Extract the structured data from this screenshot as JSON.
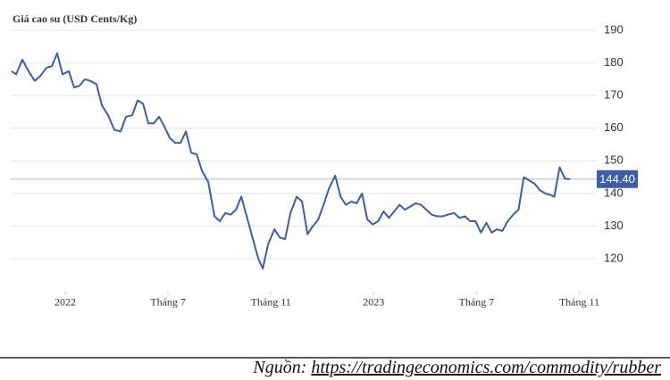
{
  "chart_data": {
    "type": "line",
    "title": "Giá cao su (USD Cents/Kg)",
    "x": [
      -0.522,
      -0.478,
      -0.417,
      -0.357,
      -0.296,
      -0.243,
      -0.183,
      -0.13,
      -0.078,
      -0.026,
      0.035,
      0.087,
      0.139,
      0.191,
      0.243,
      0.304,
      0.357,
      0.417,
      0.478,
      0.539,
      0.591,
      0.652,
      0.704,
      0.757,
      0.809,
      0.861,
      0.913,
      0.965,
      1.017,
      1.07,
      1.122,
      1.174,
      1.226,
      1.278,
      1.33,
      1.391,
      1.452,
      1.504,
      1.557,
      1.609,
      1.661,
      1.713,
      1.765,
      1.817,
      1.878,
      1.922,
      1.974,
      2.035,
      2.087,
      2.139,
      2.191,
      2.252,
      2.304,
      2.357,
      2.409,
      2.461,
      2.513,
      2.565,
      2.626,
      2.678,
      2.73,
      2.783,
      2.835,
      2.887,
      2.939,
      2.991,
      3.043,
      3.096,
      3.148,
      3.2,
      3.252,
      3.304,
      3.357,
      3.409,
      3.461,
      3.513,
      3.565,
      3.617,
      3.67,
      3.722,
      3.783,
      3.835,
      3.887,
      3.939,
      3.991,
      4.043,
      4.096,
      4.148,
      4.2,
      4.252,
      4.304,
      4.357,
      4.409,
      4.461,
      4.513,
      4.565,
      4.617,
      4.67,
      4.722,
      4.757,
      4.809,
      4.861,
      4.913
    ],
    "series": [
      {
        "color": "#3c5da8",
        "values": [
          177.5,
          176.5,
          181,
          177.5,
          174.5,
          176,
          178.5,
          179,
          183,
          176.5,
          177.5,
          172.5,
          173,
          175,
          174.5,
          173.5,
          167,
          164,
          159.5,
          159,
          163.5,
          164,
          168.5,
          167.5,
          161.5,
          161.5,
          163.5,
          160.5,
          157,
          155.5,
          155.5,
          159,
          152.5,
          152,
          147,
          143.5,
          133,
          131.5,
          134,
          133.5,
          135,
          139,
          133,
          127,
          120,
          117,
          124.5,
          129,
          126.5,
          126,
          134,
          139,
          137.5,
          127.5,
          130,
          132,
          136.5,
          141.5,
          145.5,
          139,
          136.5,
          137.5,
          137,
          140,
          132,
          130.5,
          131.5,
          134.5,
          132.5,
          134.5,
          136.5,
          135,
          136,
          137,
          136.5,
          135,
          133.5,
          133,
          133,
          133.5,
          134,
          132.5,
          133,
          131.5,
          131.5,
          128,
          131,
          128,
          129,
          128.5,
          131.5,
          133.5,
          135,
          145,
          144,
          143,
          141,
          140,
          139.5,
          139,
          148,
          144.5,
          144.4
        ]
      }
    ],
    "xlim": [
      -0.53,
      5.17
    ],
    "xticks": [
      {
        "value": 0,
        "label": "2022"
      },
      {
        "value": 1,
        "label": "Tháng 7"
      },
      {
        "value": 2,
        "label": "Tháng 11"
      },
      {
        "value": 3,
        "label": "2023"
      },
      {
        "value": 4,
        "label": "Tháng 7"
      },
      {
        "value": 5,
        "label": "Tháng 11"
      }
    ],
    "ylim": [
      110,
      195
    ],
    "yticks": [
      120,
      130,
      140,
      150,
      160,
      170,
      180,
      190
    ],
    "grid": true,
    "last_value": {
      "value": 144.4,
      "label": "144.40",
      "color": "#3c5da8",
      "line_color": "#b9b3dc"
    },
    "source_prefix": "Nguồn:",
    "source_url": "https://tradingeconomics.com/commodity/rubber"
  }
}
